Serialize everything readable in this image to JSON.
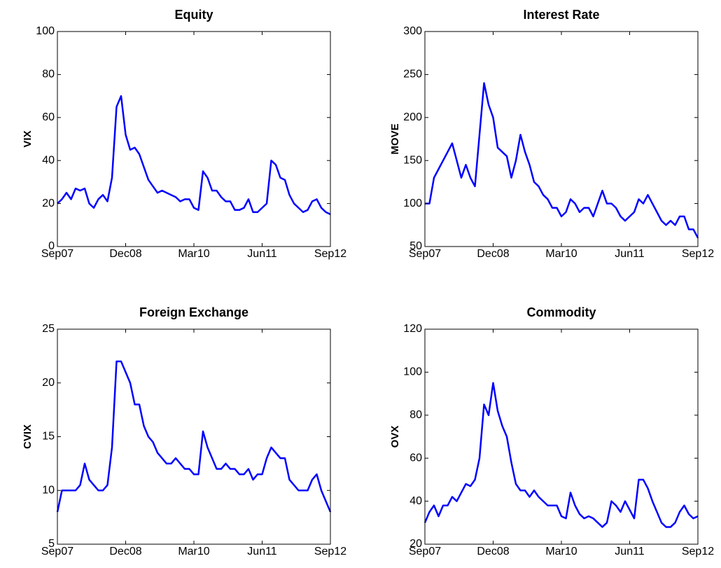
{
  "chart_data": [
    {
      "type": "line",
      "title": "Equity",
      "ylabel": "VIX",
      "color": "#0000ff",
      "x": [
        "2007-09",
        "2007-10",
        "2007-11",
        "2007-12",
        "2008-01",
        "2008-02",
        "2008-03",
        "2008-04",
        "2008-05",
        "2008-06",
        "2008-07",
        "2008-08",
        "2008-09",
        "2008-10",
        "2008-11",
        "2008-12",
        "2009-01",
        "2009-02",
        "2009-03",
        "2009-04",
        "2009-05",
        "2009-06",
        "2009-07",
        "2009-08",
        "2009-09",
        "2009-10",
        "2009-11",
        "2009-12",
        "2010-01",
        "2010-02",
        "2010-03",
        "2010-04",
        "2010-05",
        "2010-06",
        "2010-07",
        "2010-08",
        "2010-09",
        "2010-10",
        "2010-11",
        "2010-12",
        "2011-01",
        "2011-02",
        "2011-03",
        "2011-04",
        "2011-05",
        "2011-06",
        "2011-07",
        "2011-08",
        "2011-09",
        "2011-10",
        "2011-11",
        "2011-12",
        "2012-01",
        "2012-02",
        "2012-03",
        "2012-04",
        "2012-05",
        "2012-06",
        "2012-07",
        "2012-08",
        "2012-09"
      ],
      "values": [
        20,
        22,
        25,
        22,
        27,
        26,
        27,
        20,
        18,
        22,
        24,
        21,
        32,
        65,
        70,
        52,
        45,
        46,
        43,
        37,
        31,
        28,
        25,
        26,
        25,
        24,
        23,
        21,
        22,
        22,
        18,
        17,
        35,
        32,
        26,
        26,
        23,
        21,
        21,
        17,
        17,
        18,
        22,
        16,
        16,
        18,
        20,
        40,
        38,
        32,
        31,
        24,
        20,
        18,
        16,
        17,
        21,
        22,
        18,
        16,
        15
      ],
      "xlim": [
        "2007-09",
        "2012-09"
      ],
      "xticks": [
        {
          "value": "2007-09",
          "label": "Sep07"
        },
        {
          "value": "2008-12",
          "label": "Dec08"
        },
        {
          "value": "2010-03",
          "label": "Mar10"
        },
        {
          "value": "2011-06",
          "label": "Jun11"
        },
        {
          "value": "2012-09",
          "label": "Sep12"
        }
      ],
      "ylim": [
        0,
        100
      ],
      "yticks": [
        0,
        20,
        40,
        60,
        80,
        100
      ]
    },
    {
      "type": "line",
      "title": "Interest Rate",
      "ylabel": "MOVE",
      "color": "#0000ff",
      "x": [
        "2007-09",
        "2007-10",
        "2007-11",
        "2007-12",
        "2008-01",
        "2008-02",
        "2008-03",
        "2008-04",
        "2008-05",
        "2008-06",
        "2008-07",
        "2008-08",
        "2008-09",
        "2008-10",
        "2008-11",
        "2008-12",
        "2009-01",
        "2009-02",
        "2009-03",
        "2009-04",
        "2009-05",
        "2009-06",
        "2009-07",
        "2009-08",
        "2009-09",
        "2009-10",
        "2009-11",
        "2009-12",
        "2010-01",
        "2010-02",
        "2010-03",
        "2010-04",
        "2010-05",
        "2010-06",
        "2010-07",
        "2010-08",
        "2010-09",
        "2010-10",
        "2010-11",
        "2010-12",
        "2011-01",
        "2011-02",
        "2011-03",
        "2011-04",
        "2011-05",
        "2011-06",
        "2011-07",
        "2011-08",
        "2011-09",
        "2011-10",
        "2011-11",
        "2011-12",
        "2012-01",
        "2012-02",
        "2012-03",
        "2012-04",
        "2012-05",
        "2012-06",
        "2012-07",
        "2012-08",
        "2012-09"
      ],
      "values": [
        100,
        100,
        130,
        140,
        150,
        160,
        170,
        150,
        130,
        145,
        130,
        120,
        180,
        240,
        215,
        200,
        165,
        160,
        155,
        130,
        150,
        180,
        160,
        145,
        125,
        120,
        110,
        105,
        95,
        95,
        85,
        90,
        105,
        100,
        90,
        95,
        95,
        85,
        100,
        115,
        100,
        100,
        95,
        85,
        80,
        85,
        90,
        105,
        100,
        110,
        100,
        90,
        80,
        75,
        80,
        75,
        85,
        85,
        70,
        70,
        60
      ],
      "xlim": [
        "2007-09",
        "2012-09"
      ],
      "xticks": [
        {
          "value": "2007-09",
          "label": "Sep07"
        },
        {
          "value": "2008-12",
          "label": "Dec08"
        },
        {
          "value": "2010-03",
          "label": "Mar10"
        },
        {
          "value": "2011-06",
          "label": "Jun11"
        },
        {
          "value": "2012-09",
          "label": "Sep12"
        }
      ],
      "ylim": [
        50,
        300
      ],
      "yticks": [
        50,
        100,
        150,
        200,
        250,
        300
      ]
    },
    {
      "type": "line",
      "title": "Foreign Exchange",
      "ylabel": "CVIX",
      "color": "#0000ff",
      "x": [
        "2007-09",
        "2007-10",
        "2007-11",
        "2007-12",
        "2008-01",
        "2008-02",
        "2008-03",
        "2008-04",
        "2008-05",
        "2008-06",
        "2008-07",
        "2008-08",
        "2008-09",
        "2008-10",
        "2008-11",
        "2008-12",
        "2009-01",
        "2009-02",
        "2009-03",
        "2009-04",
        "2009-05",
        "2009-06",
        "2009-07",
        "2009-08",
        "2009-09",
        "2009-10",
        "2009-11",
        "2009-12",
        "2010-01",
        "2010-02",
        "2010-03",
        "2010-04",
        "2010-05",
        "2010-06",
        "2010-07",
        "2010-08",
        "2010-09",
        "2010-10",
        "2010-11",
        "2010-12",
        "2011-01",
        "2011-02",
        "2011-03",
        "2011-04",
        "2011-05",
        "2011-06",
        "2011-07",
        "2011-08",
        "2011-09",
        "2011-10",
        "2011-11",
        "2011-12",
        "2012-01",
        "2012-02",
        "2012-03",
        "2012-04",
        "2012-05",
        "2012-06",
        "2012-07",
        "2012-08",
        "2012-09"
      ],
      "values": [
        8,
        10,
        10,
        10,
        10,
        10.5,
        12.5,
        11,
        10.5,
        10,
        10,
        10.5,
        14,
        22,
        22,
        21,
        20,
        18,
        18,
        16,
        15,
        14.5,
        13.5,
        13,
        12.5,
        12.5,
        13,
        12.5,
        12,
        12,
        11.5,
        11.5,
        15.5,
        14,
        13,
        12,
        12,
        12.5,
        12,
        12,
        11.5,
        11.5,
        12,
        11,
        11.5,
        11.5,
        13,
        14,
        13.5,
        13,
        13,
        11,
        10.5,
        10,
        10,
        10,
        11,
        11.5,
        10,
        9,
        8
      ],
      "xlim": [
        "2007-09",
        "2012-09"
      ],
      "xticks": [
        {
          "value": "2007-09",
          "label": "Sep07"
        },
        {
          "value": "2008-12",
          "label": "Dec08"
        },
        {
          "value": "2010-03",
          "label": "Mar10"
        },
        {
          "value": "2011-06",
          "label": "Jun11"
        },
        {
          "value": "2012-09",
          "label": "Sep12"
        }
      ],
      "ylim": [
        5,
        25
      ],
      "yticks": [
        5,
        10,
        15,
        20,
        25
      ]
    },
    {
      "type": "line",
      "title": "Commodity",
      "ylabel": "OVX",
      "color": "#0000ff",
      "x": [
        "2007-09",
        "2007-10",
        "2007-11",
        "2007-12",
        "2008-01",
        "2008-02",
        "2008-03",
        "2008-04",
        "2008-05",
        "2008-06",
        "2008-07",
        "2008-08",
        "2008-09",
        "2008-10",
        "2008-11",
        "2008-12",
        "2009-01",
        "2009-02",
        "2009-03",
        "2009-04",
        "2009-05",
        "2009-06",
        "2009-07",
        "2009-08",
        "2009-09",
        "2009-10",
        "2009-11",
        "2009-12",
        "2010-01",
        "2010-02",
        "2010-03",
        "2010-04",
        "2010-05",
        "2010-06",
        "2010-07",
        "2010-08",
        "2010-09",
        "2010-10",
        "2010-11",
        "2010-12",
        "2011-01",
        "2011-02",
        "2011-03",
        "2011-04",
        "2011-05",
        "2011-06",
        "2011-07",
        "2011-08",
        "2011-09",
        "2011-10",
        "2011-11",
        "2011-12",
        "2012-01",
        "2012-02",
        "2012-03",
        "2012-04",
        "2012-05",
        "2012-06",
        "2012-07",
        "2012-08",
        "2012-09"
      ],
      "values": [
        30,
        35,
        38,
        33,
        38,
        38,
        42,
        40,
        44,
        48,
        47,
        50,
        60,
        85,
        80,
        95,
        82,
        75,
        70,
        58,
        48,
        45,
        45,
        42,
        45,
        42,
        40,
        38,
        38,
        38,
        33,
        32,
        44,
        38,
        34,
        32,
        33,
        32,
        30,
        28,
        30,
        40,
        38,
        35,
        40,
        36,
        32,
        50,
        50,
        46,
        40,
        35,
        30,
        28,
        28,
        30,
        35,
        38,
        34,
        32,
        33
      ],
      "xlim": [
        "2007-09",
        "2012-09"
      ],
      "xticks": [
        {
          "value": "2007-09",
          "label": "Sep07"
        },
        {
          "value": "2008-12",
          "label": "Dec08"
        },
        {
          "value": "2010-03",
          "label": "Mar10"
        },
        {
          "value": "2011-06",
          "label": "Jun11"
        },
        {
          "value": "2012-09",
          "label": "Sep12"
        }
      ],
      "ylim": [
        20,
        120
      ],
      "yticks": [
        20,
        40,
        60,
        80,
        100,
        120
      ]
    }
  ]
}
